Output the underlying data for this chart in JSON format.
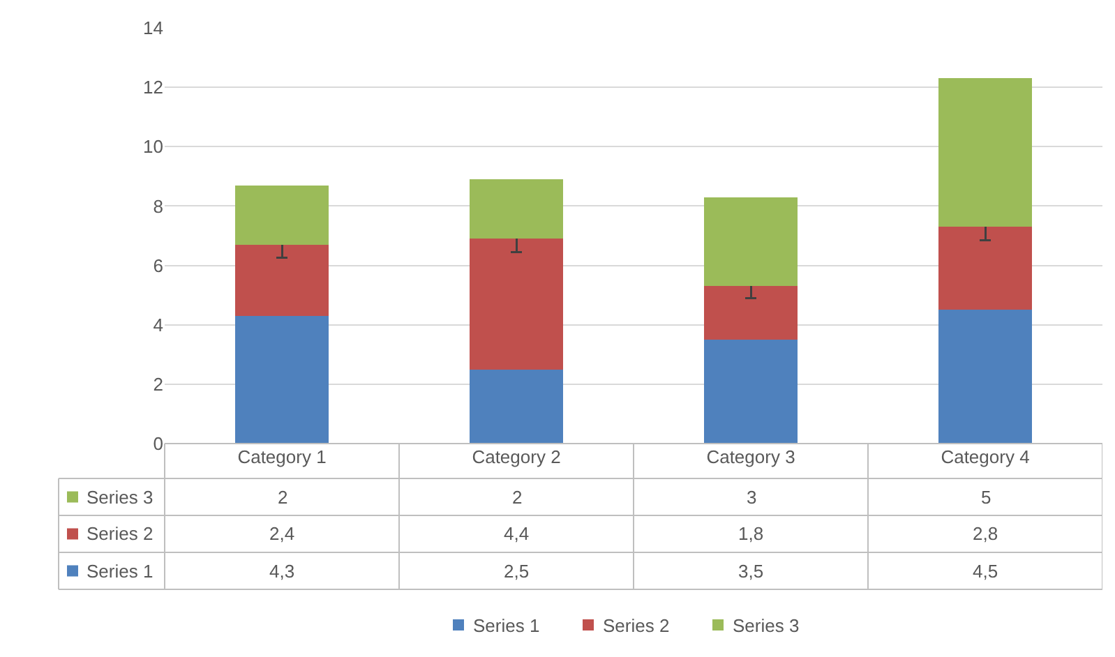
{
  "chart_data": {
    "type": "bar",
    "stacked": true,
    "categories": [
      "Category 1",
      "Category 2",
      "Category 3",
      "Category 4"
    ],
    "series": [
      {
        "name": "Series 1",
        "color": "#4f81bd",
        "values": [
          4.3,
          2.5,
          3.5,
          4.5
        ],
        "value_labels": [
          "4,3",
          "2,5",
          "3,5",
          "4,5"
        ]
      },
      {
        "name": "Series 2",
        "color": "#c0504d",
        "values": [
          2.4,
          4.4,
          1.8,
          2.8
        ],
        "value_labels": [
          "2,4",
          "4,4",
          "1,8",
          "2,8"
        ],
        "errors": [
          0.45,
          0.45,
          0.4,
          0.45
        ]
      },
      {
        "name": "Series 3",
        "color": "#9bbb59",
        "values": [
          2,
          2,
          3,
          5
        ],
        "value_labels": [
          "2",
          "2",
          "3",
          "5"
        ]
      }
    ],
    "ylim": [
      0,
      14
    ],
    "yticks": [
      0,
      2,
      4,
      6,
      8,
      10,
      12,
      14
    ],
    "grid": "y",
    "legend": "bottom"
  }
}
